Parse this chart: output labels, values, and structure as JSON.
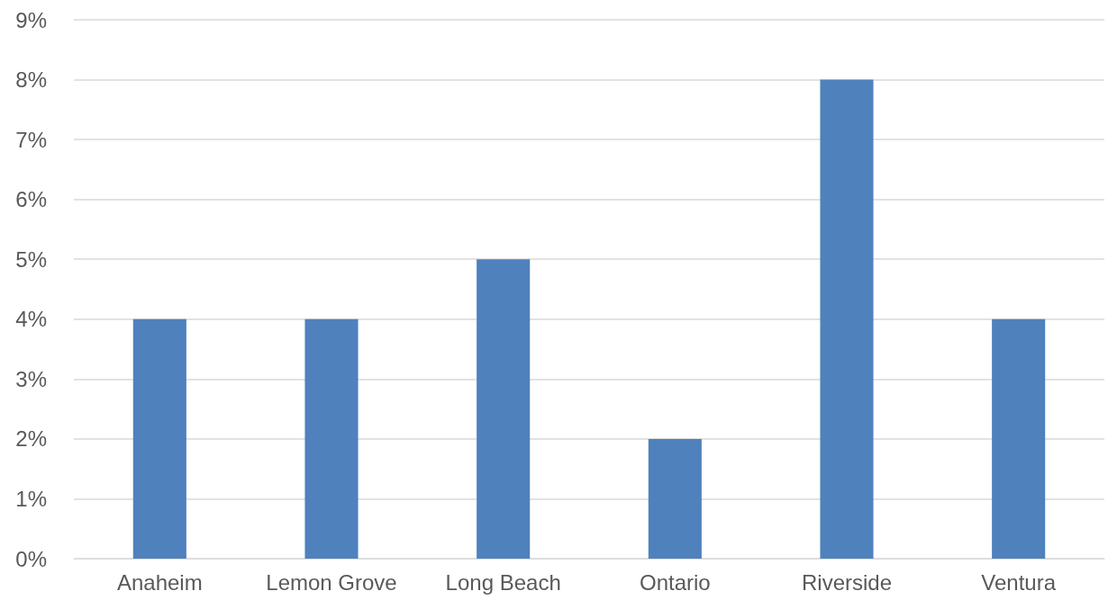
{
  "chart_data": {
    "type": "bar",
    "categories": [
      "Anaheim",
      "Lemon Grove",
      "Long Beach",
      "Ontario",
      "Riverside",
      "Ventura"
    ],
    "values": [
      4,
      4,
      5,
      2,
      8,
      4
    ],
    "color": "#4f81bd",
    "ylim": [
      0,
      9
    ],
    "yticks": [
      {
        "value": 0,
        "label": "0%"
      },
      {
        "value": 1,
        "label": "1%"
      },
      {
        "value": 2,
        "label": "2%"
      },
      {
        "value": 3,
        "label": "3%"
      },
      {
        "value": 4,
        "label": "4%"
      },
      {
        "value": 5,
        "label": "5%"
      },
      {
        "value": 6,
        "label": "6%"
      },
      {
        "value": 7,
        "label": "7%"
      },
      {
        "value": 8,
        "label": "8%"
      },
      {
        "value": 9,
        "label": "9%"
      }
    ],
    "grid": true
  }
}
